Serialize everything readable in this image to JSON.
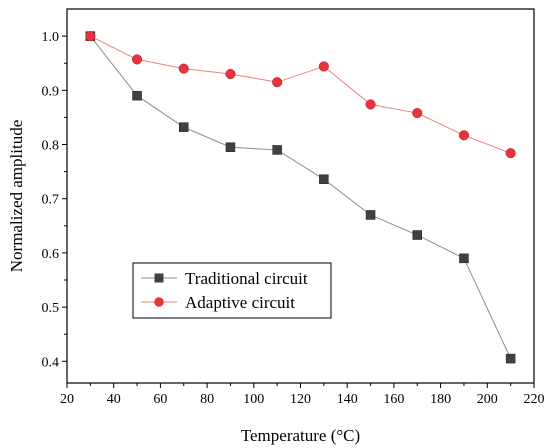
{
  "chart_data": {
    "type": "line",
    "xlabel": "Temperature (°C)",
    "ylabel": "Normalized amplitude",
    "xlim": [
      20,
      220
    ],
    "ylim": [
      0.36,
      1.05
    ],
    "x_ticks": [
      20,
      40,
      60,
      80,
      100,
      120,
      140,
      160,
      180,
      200,
      220
    ],
    "y_ticks": [
      0.4,
      0.5,
      0.6,
      0.7,
      0.8,
      0.9,
      1.0
    ],
    "y_tick_labels": [
      "0.4",
      "0.5",
      "0.6",
      "0.7",
      "0.8",
      "0.9",
      "1.0"
    ],
    "grid": false,
    "legend_position": "lower-left",
    "x": [
      30,
      50,
      70,
      90,
      110,
      130,
      150,
      170,
      190,
      210
    ],
    "series": [
      {
        "name": "Traditional circuit",
        "marker": "square",
        "color": "#404040",
        "line_color": "#8c8c8c",
        "values": [
          1.0,
          0.89,
          0.832,
          0.795,
          0.79,
          0.736,
          0.67,
          0.633,
          0.59,
          0.405
        ]
      },
      {
        "name": "Adaptive circuit",
        "marker": "circle",
        "color": "#e8323c",
        "line_color": "#f08080",
        "values": [
          1.0,
          0.957,
          0.94,
          0.93,
          0.915,
          0.944,
          0.874,
          0.858,
          0.817,
          0.784
        ]
      }
    ]
  }
}
